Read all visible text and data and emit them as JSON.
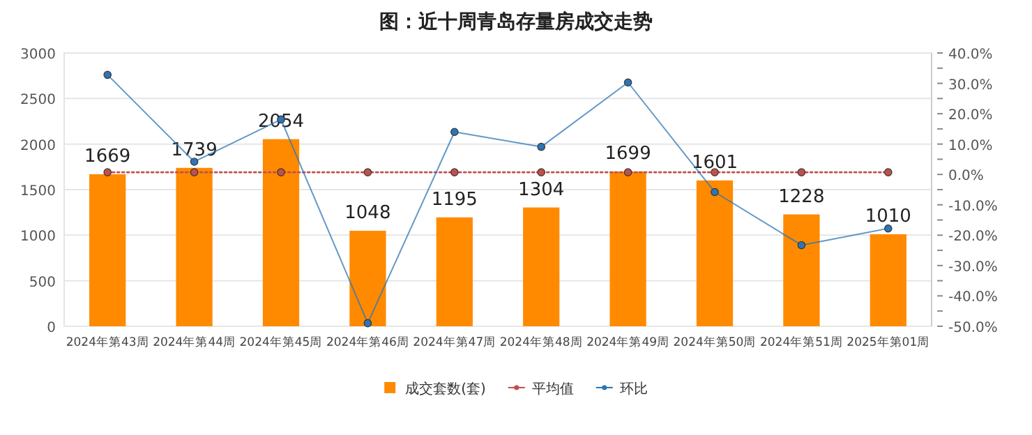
{
  "chart_data": {
    "type": "bar",
    "title": "图：近十周青岛存量房成交走势",
    "categories": [
      "2024年第43周",
      "2024年第44周",
      "2024年第45周",
      "2024年第46周",
      "2024年第47周",
      "2024年第48周",
      "2024年第49周",
      "2024年第50周",
      "2024年第51周",
      "2025年第01周"
    ],
    "series": [
      {
        "name": "成交套数(套)",
        "color": "#ff8a00",
        "values": [
          1669,
          1739,
          2054,
          1048,
          1195,
          1304,
          1699,
          1601,
          1228,
          1010
        ],
        "value_labels": [
          "1669",
          "1739",
          "2054",
          "1048",
          "1195",
          "1304",
          "1699",
          "1601",
          "1228",
          "1010"
        ]
      },
      {
        "name": "平均值",
        "type": "line",
        "color": "#c0504d",
        "line_style": "dotted",
        "marker": "circle",
        "values": [
          1690,
          1690,
          1690,
          1690,
          1690,
          1690,
          1690,
          1690,
          1690,
          1690
        ]
      },
      {
        "name": "环比",
        "type": "line",
        "axis": "y2",
        "color": "#2e75b6",
        "line_style": "solid",
        "marker": "circle",
        "values": [
          32.8,
          4.2,
          18.1,
          -49.0,
          14.0,
          9.1,
          30.3,
          -5.8,
          -23.3,
          -17.8
        ]
      }
    ],
    "ylim": [
      0,
      3000
    ],
    "yticks": [
      0,
      500,
      1000,
      1500,
      2000,
      2500,
      3000
    ],
    "y2lim": [
      -50,
      40
    ],
    "y2ticks": [
      {
        "value": -50,
        "label": "-50.0%"
      },
      {
        "value": -45,
        "label": null
      },
      {
        "value": -40,
        "label": "-40.0%"
      },
      {
        "value": -35,
        "label": null
      },
      {
        "value": -30,
        "label": "-30.0%"
      },
      {
        "value": -25,
        "label": null
      },
      {
        "value": -20,
        "label": "-20.0%"
      },
      {
        "value": -15,
        "label": null
      },
      {
        "value": -10,
        "label": "-10.0%"
      },
      {
        "value": -5,
        "label": null
      },
      {
        "value": 0,
        "label": "0.0%"
      },
      {
        "value": 5,
        "label": null
      },
      {
        "value": 10,
        "label": "10.0%"
      },
      {
        "value": 15,
        "label": null
      },
      {
        "value": 20,
        "label": "20.0%"
      },
      {
        "value": 25,
        "label": null
      },
      {
        "value": 30,
        "label": "30.0%"
      },
      {
        "value": 35,
        "label": null
      },
      {
        "value": 40,
        "label": "40.0%"
      }
    ],
    "grid": "y",
    "legend": "bottom"
  }
}
